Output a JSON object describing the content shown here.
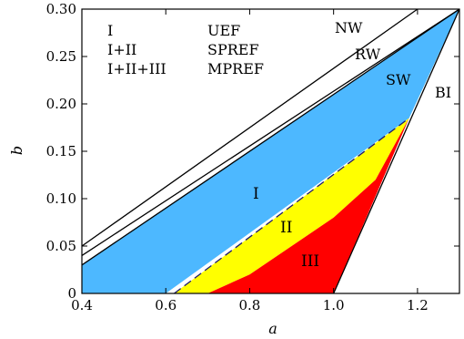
{
  "chart_data": {
    "type": "area",
    "xlabel": "a",
    "ylabel": "b",
    "xlim": [
      0.4,
      1.3
    ],
    "ylim": [
      0,
      0.3
    ],
    "xticks": [
      "0.4",
      "0.6",
      "0.8",
      "1.0",
      "1.2"
    ],
    "xtick_values": [
      0.4,
      0.6,
      0.8,
      1.0,
      1.2
    ],
    "yticks": [
      "0",
      "0.05",
      "0.10",
      "0.15",
      "0.20",
      "0.25",
      "0.30"
    ],
    "ytick_values": [
      0,
      0.05,
      0.1,
      0.15,
      0.2,
      0.25,
      0.3
    ],
    "grid": false,
    "colors": {
      "region_I": "#4db8ff",
      "region_II": "#ffff00",
      "region_III": "#ff0000",
      "boundary_line": "#000000",
      "dashed_boundary": "#1a1a6e"
    },
    "curves": [
      {
        "label": "NW",
        "x": [
          0.4,
          1.2
        ],
        "y": [
          0.05,
          0.3
        ]
      },
      {
        "label": "RW",
        "x": [
          0.4,
          1.3
        ],
        "y": [
          0.04,
          0.3
        ]
      },
      {
        "label": "SW",
        "x": [
          0.4,
          1.3
        ],
        "y": [
          0.03,
          0.3
        ]
      },
      {
        "label": "BI",
        "x": [
          1.0,
          1.3
        ],
        "y": [
          0.0,
          0.3
        ]
      }
    ],
    "regions": [
      {
        "label": "I",
        "x": [
          0.4,
          0.4,
          1.3,
          1.18,
          0.6
        ],
        "y": [
          0.0,
          0.03,
          0.3,
          0.185,
          0.0
        ]
      },
      {
        "label": "II",
        "x": [
          0.62,
          1.18,
          1.1,
          1.0,
          0.9,
          0.8,
          0.7
        ],
        "y": [
          0.0,
          0.185,
          0.12,
          0.08,
          0.05,
          0.02,
          0.0
        ]
      },
      {
        "label": "III",
        "x": [
          0.7,
          0.8,
          0.9,
          1.0,
          1.1,
          1.18,
          1.0
        ],
        "y": [
          0.0,
          0.02,
          0.05,
          0.08,
          0.12,
          0.185,
          0.0
        ]
      }
    ],
    "dashed_line": {
      "x": [
        0.62,
        1.18
      ],
      "y": [
        0.0,
        0.185
      ]
    },
    "legend_table": [
      {
        "region": "I",
        "meaning": "UEF"
      },
      {
        "region": "I+II",
        "meaning": "SPREF"
      },
      {
        "region": "I+II+III",
        "meaning": "MPREF"
      }
    ],
    "curve_labels": [
      "NW",
      "RW",
      "SW",
      "BI"
    ],
    "region_labels": [
      "I",
      "II",
      "III"
    ]
  }
}
